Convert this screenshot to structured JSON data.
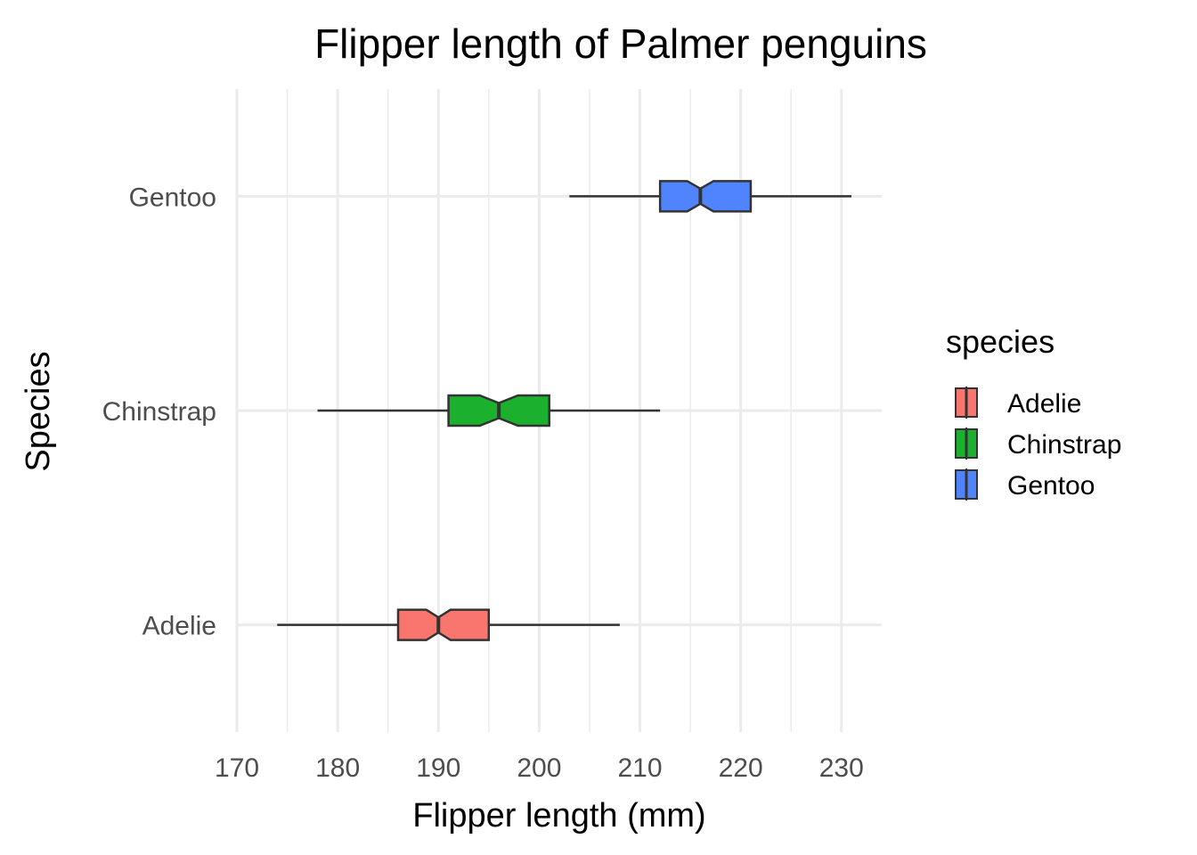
{
  "chart_data": {
    "type": "boxplot",
    "orientation": "horizontal",
    "notched": true,
    "title": "Flipper length of Palmer penguins",
    "xlabel": "Flipper length (mm)",
    "ylabel": "Species",
    "xlim": [
      170,
      234
    ],
    "x_ticks": [
      170,
      180,
      190,
      200,
      210,
      220,
      230
    ],
    "categories": [
      "Adelie",
      "Chinstrap",
      "Gentoo"
    ],
    "grid": true,
    "legend": {
      "title": "species",
      "placement": "right",
      "entries": [
        "Adelie",
        "Chinstrap",
        "Gentoo"
      ]
    },
    "series": [
      {
        "name": "Adelie",
        "color": "#f8766d",
        "min": 174,
        "q1": 186,
        "median": 190,
        "q3": 195,
        "max": 208,
        "notch_lower": 188.8,
        "notch_upper": 191.2
      },
      {
        "name": "Chinstrap",
        "color": "#1bb02d",
        "min": 178,
        "q1": 191,
        "median": 196,
        "q3": 201,
        "max": 212,
        "notch_lower": 194.1,
        "notch_upper": 197.9
      },
      {
        "name": "Gentoo",
        "color": "#5084ff",
        "min": 203,
        "q1": 212,
        "median": 216,
        "q3": 221,
        "max": 231,
        "notch_lower": 214.7,
        "notch_upper": 217.3
      }
    ]
  },
  "colors": {
    "grid": "#ebebeb",
    "outline": "#333333",
    "tick_text": "#4d4d4d"
  }
}
